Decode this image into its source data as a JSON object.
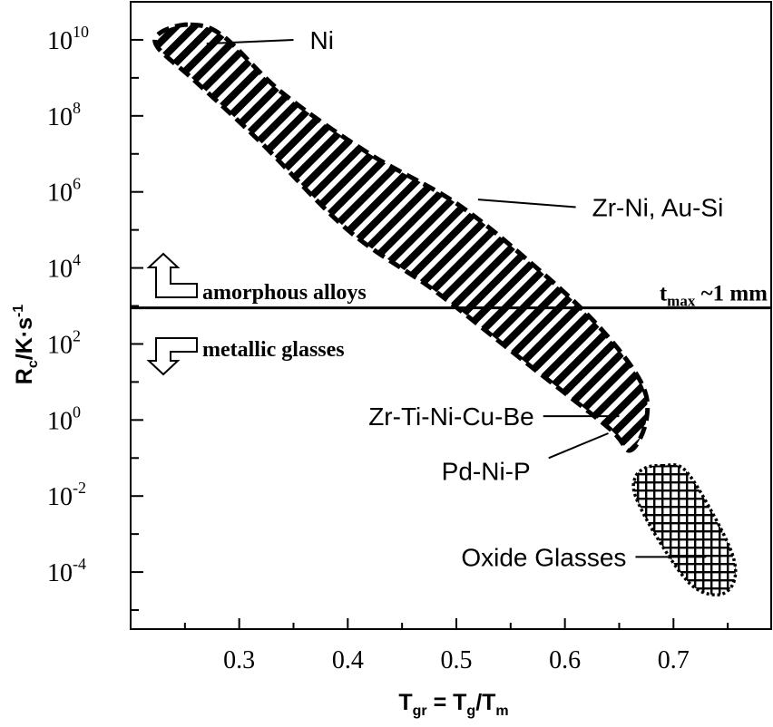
{
  "chart_data": {
    "type": "area",
    "xlabel": {
      "main": "T",
      "main_sub": "gr",
      "eq": " = T",
      "eq_sub": "g",
      "slash": "/T",
      "slash_sub": "m"
    },
    "ylabel": {
      "main": "R",
      "sub": "c",
      "unit": "/K·s",
      "sup": "-1"
    },
    "x_ticks": [
      "0.3",
      "0.4",
      "0.5",
      "0.6",
      "0.7"
    ],
    "x_tick_values": [
      0.3,
      0.4,
      0.5,
      0.6,
      0.7
    ],
    "y_ticks": [
      {
        "base": "10",
        "exp": "10",
        "value": 10
      },
      {
        "base": "10",
        "exp": "8",
        "value": 8
      },
      {
        "base": "10",
        "exp": "6",
        "value": 6
      },
      {
        "base": "10",
        "exp": "4",
        "value": 4
      },
      {
        "base": "10",
        "exp": "2",
        "value": 2
      },
      {
        "base": "10",
        "exp": "0",
        "value": 0
      },
      {
        "base": "10",
        "exp": "-2",
        "value": -2
      },
      {
        "base": "10",
        "exp": "-4",
        "value": -4
      }
    ],
    "xlim": [
      0.2,
      0.79
    ],
    "ylim_log10": [
      -5.5,
      11
    ],
    "y_scale": "log",
    "regions": [
      {
        "name": "metallic-band",
        "pattern": "diagonal-stripes",
        "color": "#000000",
        "outline": [
          [
            0.255,
            10.4
          ],
          [
            0.285,
            10.1
          ],
          [
            0.34,
            8.6
          ],
          [
            0.42,
            7.0
          ],
          [
            0.5,
            5.7
          ],
          [
            0.57,
            4.1
          ],
          [
            0.63,
            2.5
          ],
          [
            0.67,
            1.0
          ],
          [
            0.675,
            0.0
          ],
          [
            0.66,
            -0.8
          ],
          [
            0.64,
            -0.2
          ],
          [
            0.56,
            1.6
          ],
          [
            0.48,
            3.4
          ],
          [
            0.4,
            5.0
          ],
          [
            0.32,
            7.3
          ],
          [
            0.26,
            8.9
          ],
          [
            0.225,
            9.8
          ],
          [
            0.228,
            10.2
          ]
        ]
      },
      {
        "name": "oxide-glasses",
        "pattern": "crosshatch",
        "color": "#000000",
        "outline": [
          [
            0.69,
            -1.2
          ],
          [
            0.71,
            -1.3
          ],
          [
            0.735,
            -2.4
          ],
          [
            0.755,
            -3.6
          ],
          [
            0.755,
            -4.3
          ],
          [
            0.74,
            -4.6
          ],
          [
            0.715,
            -4.3
          ],
          [
            0.685,
            -3.1
          ],
          [
            0.665,
            -2.0
          ],
          [
            0.665,
            -1.5
          ],
          [
            0.675,
            -1.25
          ]
        ]
      }
    ],
    "threshold": {
      "y_log10": 2.95,
      "label_main": "t",
      "label_sub": "max",
      "label_rest": " ~1 mm"
    },
    "arrows": {
      "up_label": "amorphous alloys",
      "down_label": "metallic glasses"
    },
    "annotations": [
      {
        "text": "Ni",
        "point": [
          0.27,
          9.9
        ],
        "label_at": [
          0.35,
          10.0
        ]
      },
      {
        "text": "Zr-Ni, Au-Si",
        "point": [
          0.52,
          5.8
        ],
        "label_at": [
          0.61,
          5.6
        ]
      },
      {
        "text": "Zr-Ti-Ni-Cu-Be",
        "point": [
          0.65,
          0.1
        ],
        "label_at": [
          0.58,
          0.1
        ]
      },
      {
        "text": "Pd-Ni-P",
        "point": [
          0.64,
          -0.35
        ],
        "label_at": [
          0.585,
          -1.0
        ]
      },
      {
        "text": "Oxide Glasses",
        "point": [
          0.73,
          -3.6
        ],
        "label_at": [
          0.665,
          -3.6
        ]
      }
    ],
    "grid": false,
    "legend": "none"
  }
}
